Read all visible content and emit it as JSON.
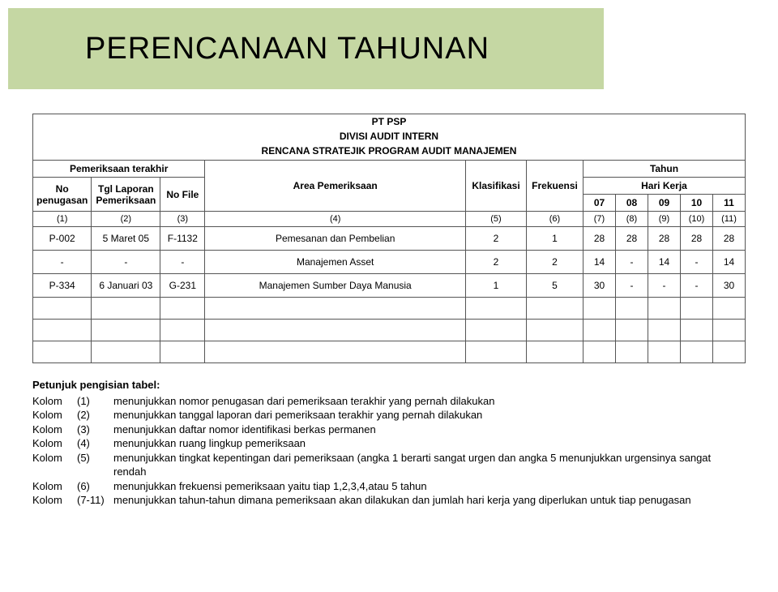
{
  "title": "PERENCANAAN TAHUNAN",
  "header": {
    "line1": "PT PSP",
    "line2": "DIVISI AUDIT INTERN",
    "line3": "RENCANA STRATEJIK PROGRAM AUDIT MANAJEMEN"
  },
  "groupHeaders": {
    "pemeriksaan": "Pemeriksaan terakhir",
    "tahun": "Tahun",
    "hariKerja": "Hari Kerja"
  },
  "columns": {
    "c1": "No penugasan",
    "c2": "Tgl Laporan Pemeriksaan",
    "c3": "No File",
    "c4": "Area Pemeriksaan",
    "c5": "Klasifikasi",
    "c6": "Frekuensi",
    "y07": "07",
    "y08": "08",
    "y09": "09",
    "y10": "10",
    "y11": "11"
  },
  "colNums": {
    "n1": "(1)",
    "n2": "(2)",
    "n3": "(3)",
    "n4": "(4)",
    "n5": "(5)",
    "n6": "(6)",
    "n7": "(7)",
    "n8": "(8)",
    "n9": "(9)",
    "n10": "(10)",
    "n11": "(11)"
  },
  "rows": [
    {
      "c1": "P-002",
      "c2": "5 Maret 05",
      "c3": "F-1132",
      "c4": "Pemesanan dan Pembelian",
      "c5": "2",
      "c6": "1",
      "y07": "28",
      "y08": "28",
      "y09": "28",
      "y10": "28",
      "y11": "28"
    },
    {
      "c1": "-",
      "c2": "-",
      "c3": "-",
      "c4": "Manajemen Asset",
      "c5": "2",
      "c6": "2",
      "y07": "14",
      "y08": "-",
      "y09": "14",
      "y10": "-",
      "y11": "14"
    },
    {
      "c1": "P-334",
      "c2": "6 Januari 03",
      "c3": "G-231",
      "c4": "Manajemen Sumber Daya Manusia",
      "c5": "1",
      "c6": "5",
      "y07": "30",
      "y08": "-",
      "y09": "-",
      "y10": "-",
      "y11": "30"
    }
  ],
  "instructions": {
    "title": "Petunjuk pengisian tabel:",
    "items": [
      {
        "label": "Kolom",
        "num": "(1)",
        "text": "menunjukkan nomor penugasan dari pemeriksaan terakhir yang pernah dilakukan"
      },
      {
        "label": "Kolom",
        "num": "(2)",
        "text": "menunjukkan tanggal laporan dari pemeriksaan terakhir yang pernah dilakukan"
      },
      {
        "label": "Kolom",
        "num": "(3)",
        "text": "menunjukkan daftar nomor identifikasi berkas permanen"
      },
      {
        "label": "Kolom",
        "num": "(4)",
        "text": "menunjukkan ruang lingkup pemeriksaan"
      },
      {
        "label": "Kolom",
        "num": "(5)",
        "text": "menunjukkan tingkat kepentingan dari pemeriksaan (angka 1 berarti sangat urgen dan angka 5 menunjukkan urgensinya sangat rendah"
      },
      {
        "label": "Kolom",
        "num": "(6)",
        "text": "menunjukkan frekuensi pemeriksaan yaitu tiap 1,2,3,4,atau 5 tahun"
      },
      {
        "label": "Kolom",
        "num": "(7-11)",
        "text": "menunjukkan tahun-tahun dimana pemeriksaan akan dilakukan dan jumlah hari kerja yang diperlukan untuk tiap penugasan"
      }
    ]
  }
}
